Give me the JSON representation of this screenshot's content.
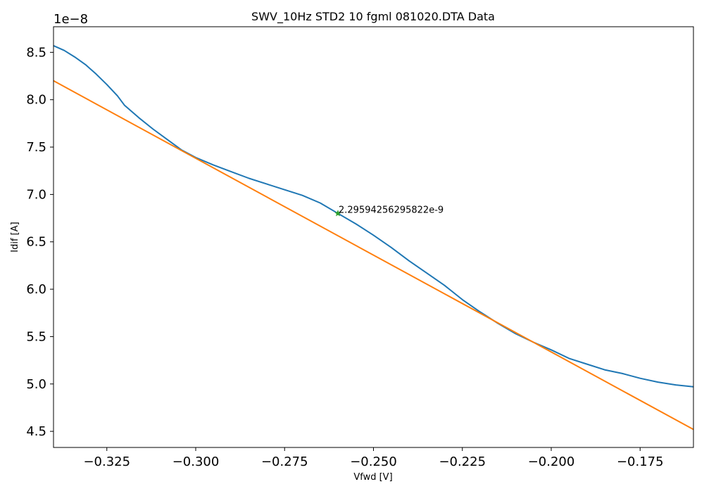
{
  "chart_data": {
    "type": "line",
    "title": "SWV_10Hz STD2 10  fgml 081020.DTA Data",
    "xlabel": "Vfwd [V]",
    "ylabel": "Idif [A]",
    "y_offset_label": "1e−8",
    "xlim": [
      -0.34,
      -0.16
    ],
    "ylim": [
      4.33,
      8.77
    ],
    "x_ticks": [
      -0.325,
      -0.3,
      -0.275,
      -0.25,
      -0.225,
      -0.2,
      -0.175
    ],
    "x_tick_labels": [
      "−0.325",
      "−0.300",
      "−0.275",
      "−0.250",
      "−0.225",
      "−0.200",
      "−0.175"
    ],
    "y_ticks": [
      4.5,
      5.0,
      5.5,
      6.0,
      6.5,
      7.0,
      7.5,
      8.0,
      8.5
    ],
    "y_tick_labels": [
      "4.5",
      "5.0",
      "5.5",
      "6.0",
      "6.5",
      "7.0",
      "7.5",
      "8.0",
      "8.5"
    ],
    "grid": false,
    "series": [
      {
        "color": "#1f77b4",
        "points": [
          [
            -0.34,
            8.57
          ],
          [
            -0.337,
            8.52
          ],
          [
            -0.334,
            8.45
          ],
          [
            -0.331,
            8.37
          ],
          [
            -0.328,
            8.27
          ],
          [
            -0.325,
            8.16
          ],
          [
            -0.322,
            8.04
          ],
          [
            -0.32,
            7.94
          ],
          [
            -0.316,
            7.81
          ],
          [
            -0.312,
            7.69
          ],
          [
            -0.308,
            7.58
          ],
          [
            -0.304,
            7.47
          ],
          [
            -0.3,
            7.39
          ],
          [
            -0.295,
            7.31
          ],
          [
            -0.29,
            7.24
          ],
          [
            -0.285,
            7.17
          ],
          [
            -0.28,
            7.11
          ],
          [
            -0.275,
            7.05
          ],
          [
            -0.27,
            6.99
          ],
          [
            -0.265,
            6.91
          ],
          [
            -0.26,
            6.8
          ],
          [
            -0.255,
            6.69
          ],
          [
            -0.25,
            6.57
          ],
          [
            -0.245,
            6.44
          ],
          [
            -0.24,
            6.3
          ],
          [
            -0.235,
            6.17
          ],
          [
            -0.23,
            6.04
          ],
          [
            -0.225,
            5.89
          ],
          [
            -0.22,
            5.76
          ],
          [
            -0.215,
            5.64
          ],
          [
            -0.21,
            5.53
          ],
          [
            -0.205,
            5.44
          ],
          [
            -0.2,
            5.36
          ],
          [
            -0.195,
            5.27
          ],
          [
            -0.19,
            5.21
          ],
          [
            -0.185,
            5.15
          ],
          [
            -0.18,
            5.11
          ],
          [
            -0.175,
            5.06
          ],
          [
            -0.17,
            5.02
          ],
          [
            -0.165,
            4.99
          ],
          [
            -0.16,
            4.97
          ]
        ]
      },
      {
        "color": "#ff7f0e",
        "points": [
          [
            -0.34,
            8.2
          ],
          [
            -0.16,
            4.52
          ]
        ]
      }
    ],
    "marker": {
      "x": -0.26,
      "y": 6.8,
      "color": "#2ca02c",
      "shape": "star"
    },
    "annotations": [
      {
        "text": "2.29594256295822e-9",
        "x": -0.26,
        "y": 6.8
      }
    ]
  }
}
